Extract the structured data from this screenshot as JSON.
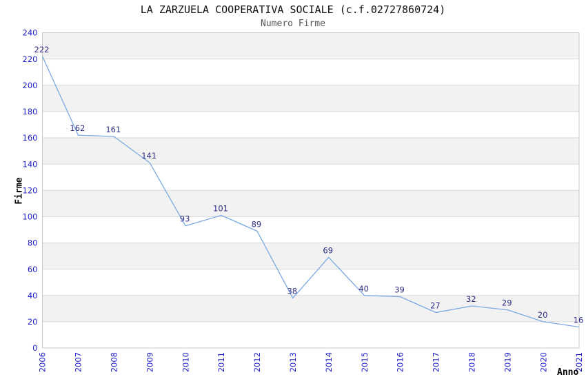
{
  "chart_data": {
    "type": "line",
    "title": "LA ZARZUELA COOPERATIVA SOCIALE (c.f.02727860724)",
    "subtitle": "Numero Firme",
    "xlabel": "Anno",
    "ylabel": "Firme",
    "x": [
      "2006",
      "2007",
      "2008",
      "2009",
      "2010",
      "2011",
      "2012",
      "2013",
      "2014",
      "2015",
      "2016",
      "2017",
      "2018",
      "2019",
      "2020",
      "2021"
    ],
    "values": [
      222,
      162,
      161,
      141,
      93,
      101,
      89,
      38,
      69,
      40,
      39,
      27,
      32,
      29,
      20,
      16
    ],
    "ylim": [
      0,
      240
    ],
    "ytick_step": 20,
    "grid": "horizontal",
    "alternating_bands": true,
    "legend": "none",
    "data_labels": true,
    "colors": {
      "line": "#79a9e3",
      "tick_label": "#2222cc",
      "data_label": "#2e2e85",
      "band": "#f2f2f2",
      "gridline": "#d8d8d8",
      "border": "#c9c9c9",
      "title": "#111111",
      "subtitle": "#555555",
      "axis_title": "#000000"
    }
  }
}
